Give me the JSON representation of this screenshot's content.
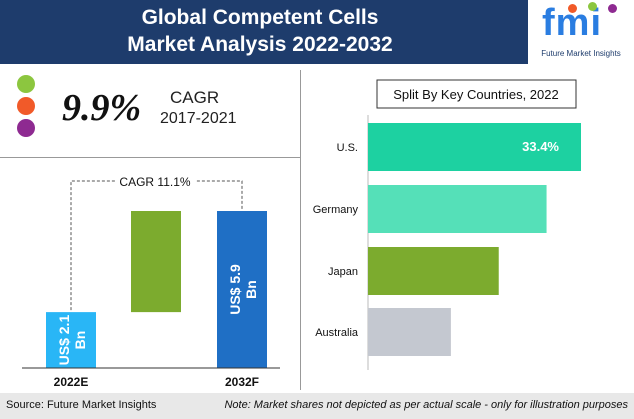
{
  "header": {
    "title_line1": "Global Competent Cells",
    "title_line2": "Market Analysis 2022-2032"
  },
  "logo": {
    "text": "fmi",
    "tagline": "Future Market Insights"
  },
  "cagr_panel": {
    "value": "9.9%",
    "label": "CAGR",
    "period": "2017-2021",
    "dot_colors": [
      "#8cc63f",
      "#f15a29",
      "#8e2a91"
    ]
  },
  "footer": {
    "source": "Source: Future Market Insights",
    "note": "Note: Market shares not depicted as per actual scale - only for illustration purposes"
  },
  "chart_data": [
    {
      "type": "bar",
      "categories": [
        "2022E",
        "2032F"
      ],
      "series": [
        {
          "values": [
            2.1,
            5.9
          ],
          "labels": [
            "US$ 2.1 Bn",
            "US$ 5.9 Bn"
          ]
        }
      ],
      "annotation": "CAGR 11.1%",
      "colors": {
        "2022E": "#29b6f6",
        "2032F": "#1f6fc5",
        "growth": "#7cab2e"
      }
    },
    {
      "type": "bar",
      "orientation": "horizontal",
      "title": "Split By Key Countries, 2022",
      "categories": [
        "U.S.",
        "Germany",
        "Japan",
        "Australia"
      ],
      "values": [
        33.4,
        28,
        20.5,
        13
      ],
      "data_labels": [
        "33.4%",
        "",
        "",
        ""
      ],
      "colors": [
        "#1dd1a1",
        "#55e0b8",
        "#7cab2e",
        "#c4c8d0"
      ]
    }
  ]
}
